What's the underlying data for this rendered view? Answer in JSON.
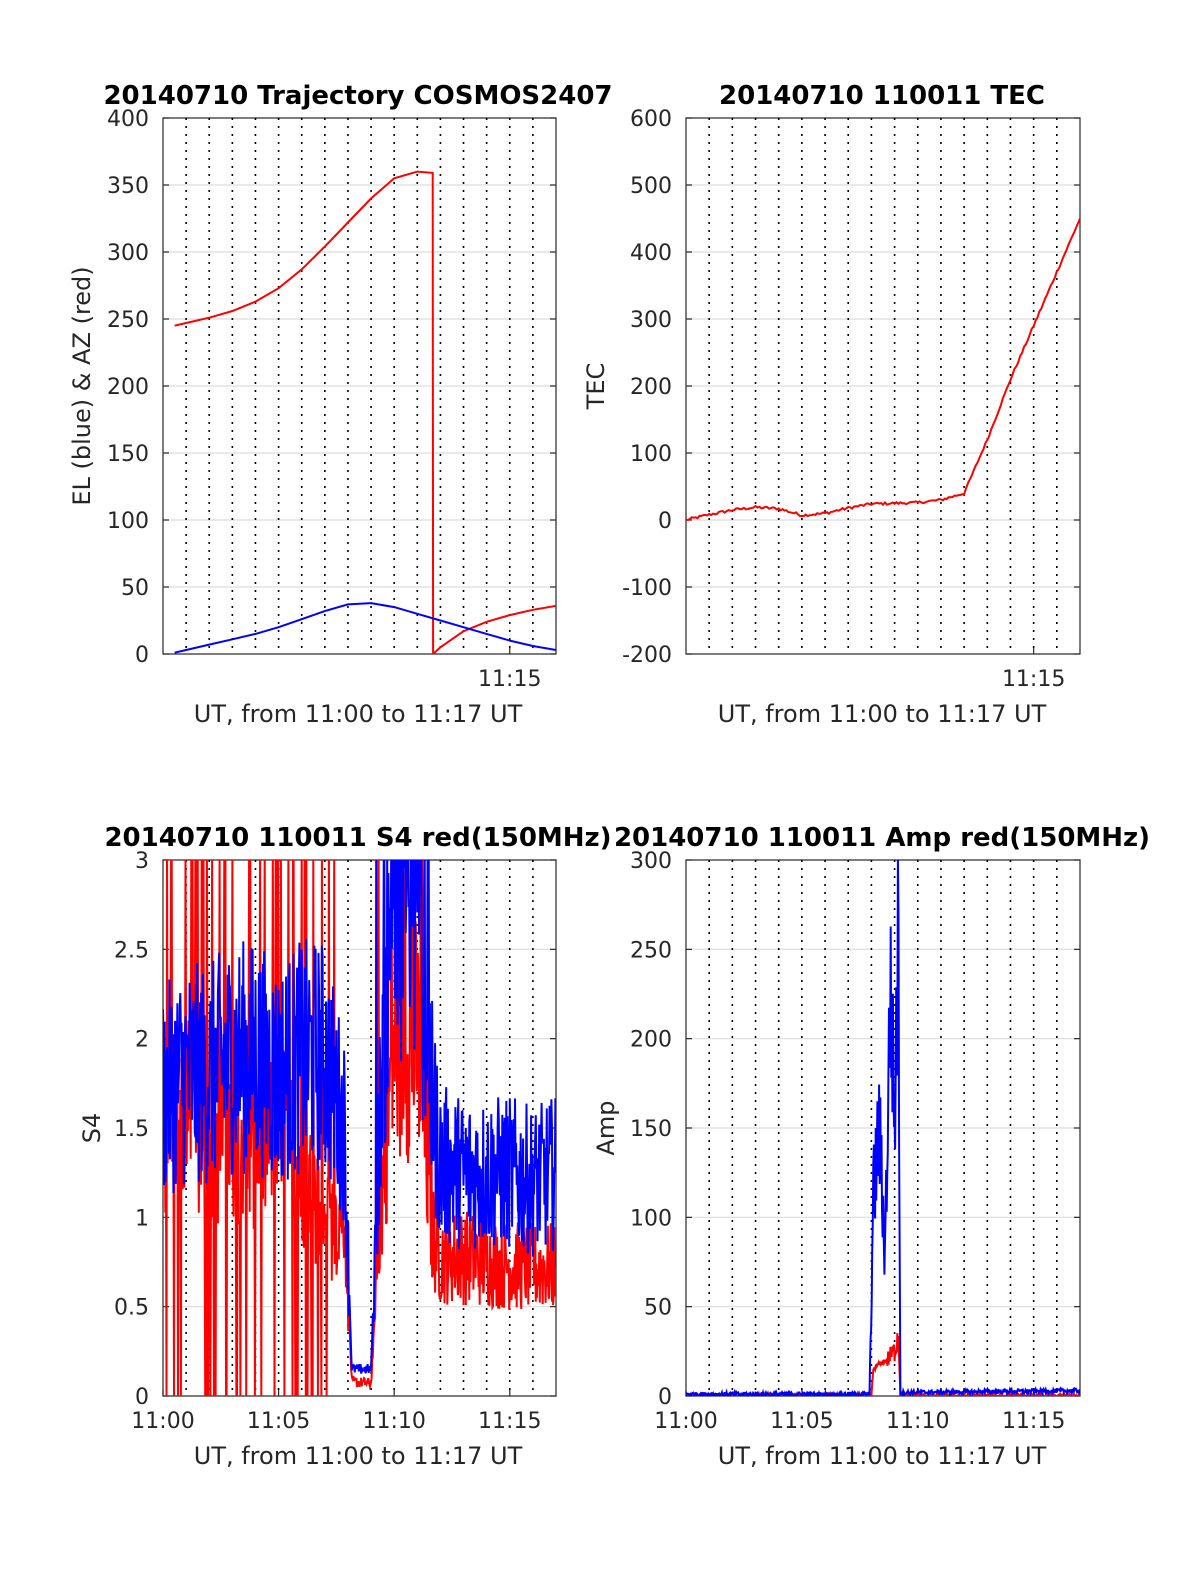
{
  "chart_data": [
    {
      "id": "traj",
      "type": "line",
      "title": "20140710 Trajectory COSMOS2407",
      "xlabel": "UT, from 11:00 to 11:17 UT",
      "ylabel": "EL (blue) & AZ (red)",
      "xlim": [
        "11:00",
        "11:17"
      ],
      "ylim": [
        0,
        400
      ],
      "yticks": [
        "0",
        "50",
        "100",
        "150",
        "200",
        "250",
        "300",
        "350",
        "400"
      ],
      "xticks": [
        {
          "t": "11:15",
          "label": "11:15"
        }
      ],
      "grid_minutes": [
        0,
        1,
        2,
        3,
        4,
        5,
        6,
        7,
        8,
        9,
        10,
        11,
        12,
        13,
        14,
        15,
        16,
        17
      ],
      "series": [
        {
          "color": "#ff0000",
          "x": [
            "11:00:30",
            "11:01",
            "11:02",
            "11:03",
            "11:04",
            "11:05",
            "11:06",
            "11:07",
            "11:08",
            "11:09",
            "11:10",
            "11:11",
            "11:11:40",
            "11:11:41",
            "11:12",
            "11:13",
            "11:14",
            "11:15",
            "11:16",
            "11:17"
          ],
          "y": [
            245,
            247,
            251,
            256,
            263,
            273,
            287,
            304,
            322,
            340,
            355,
            360,
            359,
            0,
            5,
            17,
            24,
            29,
            33,
            36
          ]
        },
        {
          "color": "#0000ff",
          "x": [
            "11:00:30",
            "11:01",
            "11:02",
            "11:03",
            "11:04",
            "11:05",
            "11:06",
            "11:07",
            "11:08",
            "11:09",
            "11:10",
            "11:11",
            "11:12",
            "11:13",
            "11:14",
            "11:15",
            "11:16",
            "11:17"
          ],
          "y": [
            1,
            3,
            7,
            11,
            15,
            20,
            26,
            32,
            37,
            38,
            35,
            30,
            25,
            20,
            15,
            10,
            6,
            3
          ]
        }
      ]
    },
    {
      "id": "tec",
      "type": "line",
      "title": "20140710 110011 TEC",
      "xlabel": "UT, from 11:00 to 11:17 UT",
      "ylabel": "TEC",
      "xlim": [
        "11:00",
        "11:17"
      ],
      "ylim": [
        -200,
        600
      ],
      "yticks": [
        "-200",
        "-100",
        "0",
        "100",
        "200",
        "300",
        "400",
        "500",
        "600"
      ],
      "xticks": [
        {
          "t": "11:15",
          "label": "11:15"
        }
      ],
      "grid_minutes": [
        0,
        1,
        2,
        3,
        4,
        5,
        6,
        7,
        8,
        9,
        10,
        11,
        12,
        13,
        14,
        15,
        16,
        17
      ],
      "series": [
        {
          "color": "#ff0000",
          "x": [
            "11:00",
            "11:01",
            "11:02",
            "11:03",
            "11:04",
            "11:05",
            "11:06",
            "11:07",
            "11:08",
            "11:09",
            "11:10",
            "11:11",
            "11:12",
            "11:13",
            "11:14",
            "11:15",
            "11:16",
            "11:17"
          ],
          "y": [
            0,
            8,
            15,
            19,
            17,
            7,
            10,
            18,
            24,
            25,
            26,
            30,
            40,
            120,
            210,
            290,
            370,
            450
          ]
        }
      ]
    },
    {
      "id": "s4",
      "type": "line",
      "title": "20140710 110011 S4 red(150MHz)",
      "xlabel": "UT, from 11:00 to 11:17 UT",
      "ylabel": "S4",
      "xlim": [
        "11:00",
        "11:17"
      ],
      "ylim": [
        0,
        3
      ],
      "yticks": [
        "0",
        "0.5",
        "1",
        "1.5",
        "2",
        "2.5",
        "3"
      ],
      "xticks": [
        {
          "t": "11:00",
          "label": "11:00"
        },
        {
          "t": "11:05",
          "label": "11:05"
        },
        {
          "t": "11:10",
          "label": "11:10"
        },
        {
          "t": "11:15",
          "label": "11:15"
        }
      ],
      "grid_minutes": [
        0,
        1,
        2,
        3,
        4,
        5,
        6,
        7,
        8,
        9,
        10,
        11,
        12,
        13,
        14,
        15,
        16,
        17
      ],
      "series": [
        {
          "color": "#ff0000",
          "x": [
            "11:00",
            "11:01",
            "11:02",
            "11:03",
            "11:04",
            "11:05",
            "11:06",
            "11:07",
            "11:07:50",
            "11:08:10",
            "11:09",
            "11:09:30",
            "11:10",
            "11:11",
            "11:11:40",
            "11:12",
            "11:13",
            "11:14",
            "11:15",
            "11:16",
            "11:17"
          ],
          "y": [
            1.5,
            1.6,
            1.4,
            1.5,
            1.4,
            1.5,
            1.3,
            0.9,
            1.1,
            0.08,
            0.07,
            1.2,
            2.0,
            2.0,
            0.9,
            0.78,
            0.78,
            0.75,
            0.73,
            0.72,
            0.72
          ]
        },
        {
          "color": "#0000ff",
          "x": [
            "11:00",
            "11:01",
            "11:02",
            "11:03",
            "11:04",
            "11:05",
            "11:06",
            "11:07",
            "11:07:50",
            "11:08:10",
            "11:09",
            "11:09:30",
            "11:10",
            "11:11",
            "11:11:40",
            "11:12",
            "11:13",
            "11:14",
            "11:15",
            "11:16",
            "11:17"
          ],
          "y": [
            1.7,
            1.8,
            1.8,
            1.9,
            1.9,
            1.8,
            1.9,
            1.9,
            1.5,
            0.15,
            0.15,
            2.0,
            2.6,
            2.7,
            1.6,
            1.3,
            1.25,
            1.25,
            1.25,
            1.2,
            1.25
          ]
        }
      ]
    },
    {
      "id": "amp",
      "type": "line",
      "title": "20140710 110011 Amp red(150MHz)",
      "xlabel": "UT, from 11:00 to 11:17 UT",
      "ylabel": "Amp",
      "xlim": [
        "11:00",
        "11:17"
      ],
      "ylim": [
        0,
        300
      ],
      "yticks": [
        "0",
        "50",
        "100",
        "150",
        "200",
        "250",
        "300"
      ],
      "xticks": [
        {
          "t": "11:00",
          "label": "11:00"
        },
        {
          "t": "11:05",
          "label": "11:05"
        },
        {
          "t": "11:10",
          "label": "11:10"
        },
        {
          "t": "11:15",
          "label": "11:15"
        }
      ],
      "grid_minutes": [
        0,
        1,
        2,
        3,
        4,
        5,
        6,
        7,
        8,
        9,
        10,
        11,
        12,
        13,
        14,
        15,
        16,
        17
      ],
      "series": [
        {
          "color": "#ff0000",
          "x": [
            "11:00",
            "11:08",
            "11:08:05",
            "11:08:20",
            "11:08:40",
            "11:09",
            "11:09:10",
            "11:09:15",
            "11:17"
          ],
          "y": [
            0,
            0,
            15,
            18,
            20,
            25,
            36,
            0,
            0
          ]
        },
        {
          "color": "#0000ff",
          "x": [
            "11:00",
            "11:07:55",
            "11:08:05",
            "11:08:20",
            "11:08:35",
            "11:08:50",
            "11:09",
            "11:09:10",
            "11:09:15",
            "11:10",
            "11:17"
          ],
          "y": [
            1,
            1,
            110,
            150,
            80,
            230,
            150,
            262,
            2,
            2,
            3
          ]
        }
      ]
    }
  ]
}
